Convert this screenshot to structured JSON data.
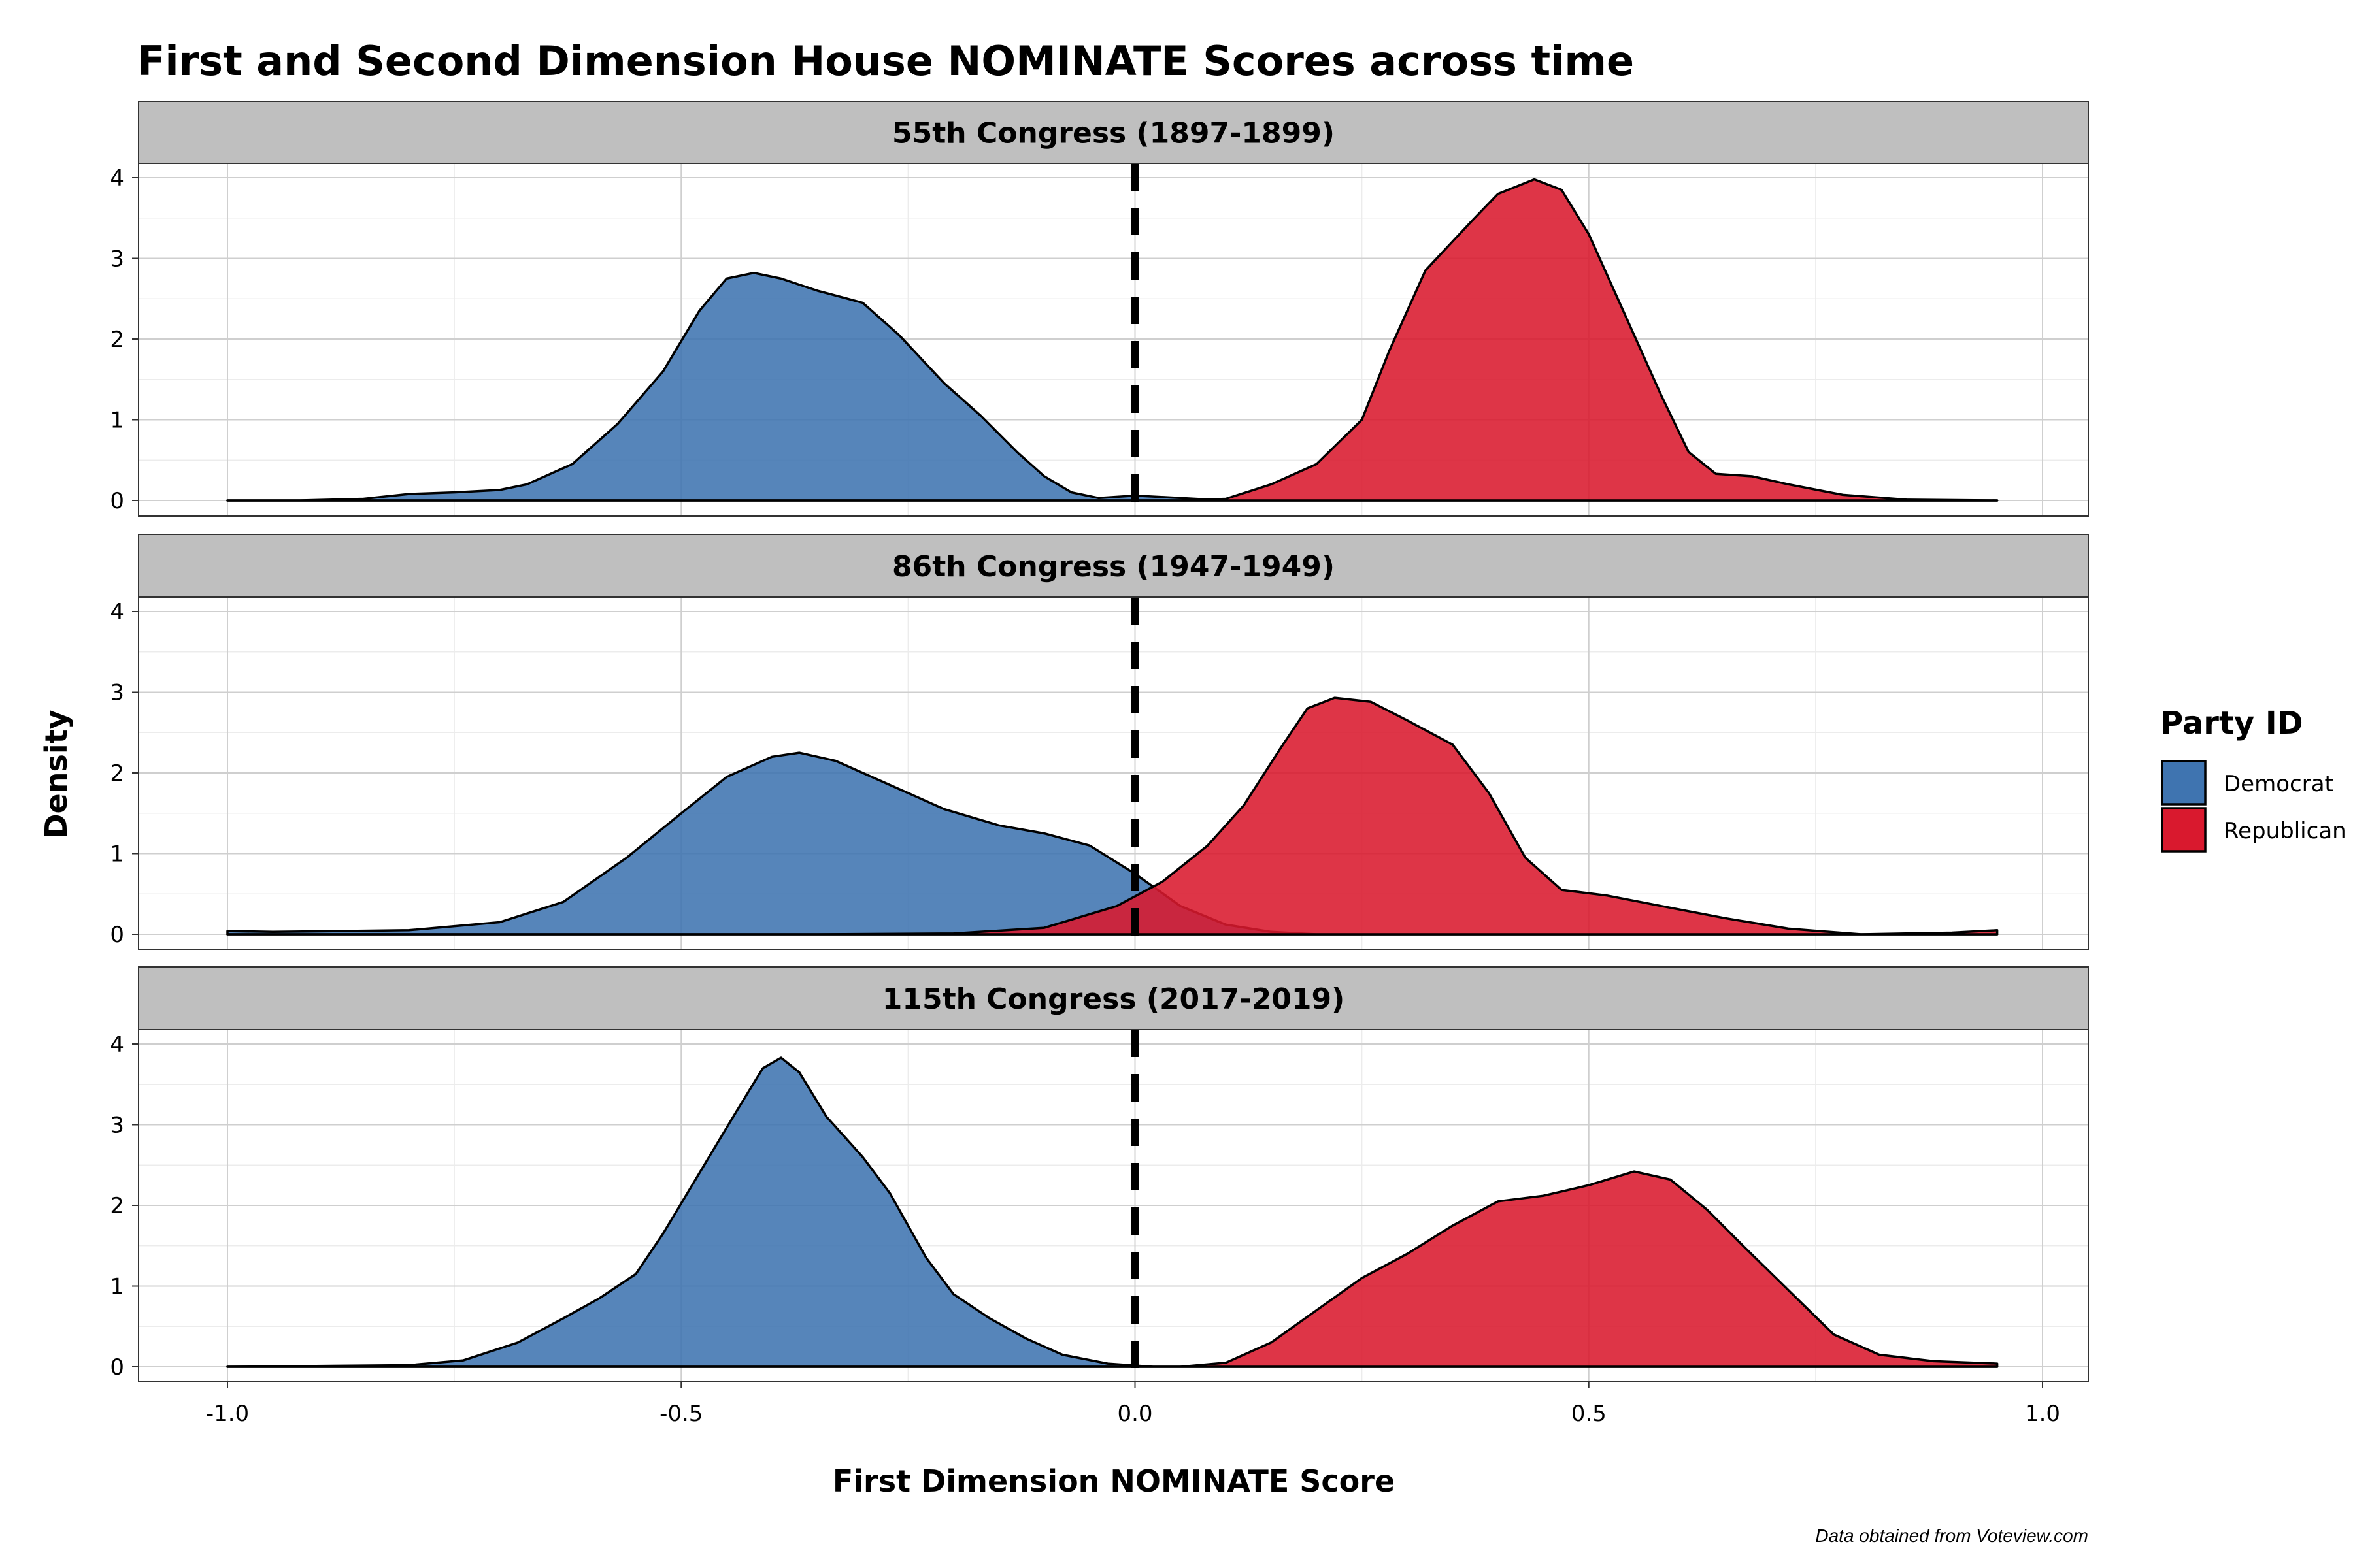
{
  "chart_data": {
    "type": "area",
    "title": "First and Second Dimension House NOMINATE Scores across time",
    "xlabel": "First Dimension NOMINATE Score",
    "ylabel": "Density",
    "caption": "Data obtained from Voteview.com",
    "xlim": [
      -1.0,
      1.0
    ],
    "ylim": [
      0,
      4
    ],
    "x_ticks": [
      "-1.0",
      "-0.5",
      "0.0",
      "0.5",
      "1.0"
    ],
    "y_ticks": [
      "0",
      "1",
      "2",
      "3",
      "4"
    ],
    "grid": true,
    "reference_line": {
      "x": 0.0,
      "style": "dashed"
    },
    "legend": {
      "title": "Party ID",
      "position": "right",
      "items": [
        {
          "name": "Democrat",
          "color": "#3f74b0"
        },
        {
          "name": "Republican",
          "color": "#d9192e"
        }
      ]
    },
    "panels": [
      {
        "label": "55th Congress (1897-1899)",
        "series": [
          {
            "name": "Democrat",
            "color": "#3f74b0",
            "points": [
              [
                -1.0,
                0
              ],
              [
                -0.92,
                0
              ],
              [
                -0.85,
                0.02
              ],
              [
                -0.8,
                0.08
              ],
              [
                -0.75,
                0.1
              ],
              [
                -0.7,
                0.13
              ],
              [
                -0.67,
                0.2
              ],
              [
                -0.62,
                0.45
              ],
              [
                -0.57,
                0.95
              ],
              [
                -0.52,
                1.6
              ],
              [
                -0.48,
                2.35
              ],
              [
                -0.45,
                2.75
              ],
              [
                -0.42,
                2.82
              ],
              [
                -0.39,
                2.75
              ],
              [
                -0.35,
                2.6
              ],
              [
                -0.3,
                2.45
              ],
              [
                -0.26,
                2.05
              ],
              [
                -0.21,
                1.45
              ],
              [
                -0.17,
                1.05
              ],
              [
                -0.13,
                0.6
              ],
              [
                -0.1,
                0.3
              ],
              [
                -0.07,
                0.1
              ],
              [
                -0.04,
                0.03
              ],
              [
                0.0,
                0.06
              ],
              [
                0.05,
                0.03
              ],
              [
                0.1,
                0
              ],
              [
                0.95,
                0
              ]
            ]
          },
          {
            "name": "Republican",
            "color": "#d9192e",
            "points": [
              [
                -1.0,
                0
              ],
              [
                0.05,
                0
              ],
              [
                0.1,
                0.02
              ],
              [
                0.15,
                0.2
              ],
              [
                0.2,
                0.45
              ],
              [
                0.25,
                1.0
              ],
              [
                0.28,
                1.85
              ],
              [
                0.32,
                2.85
              ],
              [
                0.37,
                3.45
              ],
              [
                0.4,
                3.8
              ],
              [
                0.44,
                3.98
              ],
              [
                0.47,
                3.85
              ],
              [
                0.5,
                3.3
              ],
              [
                0.54,
                2.3
              ],
              [
                0.58,
                1.3
              ],
              [
                0.61,
                0.6
              ],
              [
                0.64,
                0.33
              ],
              [
                0.68,
                0.3
              ],
              [
                0.72,
                0.2
              ],
              [
                0.78,
                0.07
              ],
              [
                0.85,
                0.01
              ],
              [
                0.95,
                0
              ]
            ]
          }
        ]
      },
      {
        "label": "86th Congress (1947-1949)",
        "series": [
          {
            "name": "Democrat",
            "color": "#3f74b0",
            "points": [
              [
                -1.0,
                0.04
              ],
              [
                -0.95,
                0.03
              ],
              [
                -0.8,
                0.05
              ],
              [
                -0.7,
                0.15
              ],
              [
                -0.63,
                0.4
              ],
              [
                -0.56,
                0.95
              ],
              [
                -0.5,
                1.5
              ],
              [
                -0.45,
                1.95
              ],
              [
                -0.4,
                2.2
              ],
              [
                -0.37,
                2.25
              ],
              [
                -0.33,
                2.15
              ],
              [
                -0.27,
                1.85
              ],
              [
                -0.21,
                1.55
              ],
              [
                -0.15,
                1.35
              ],
              [
                -0.1,
                1.25
              ],
              [
                -0.05,
                1.1
              ],
              [
                0.0,
                0.75
              ],
              [
                0.05,
                0.35
              ],
              [
                0.1,
                0.12
              ],
              [
                0.15,
                0.03
              ],
              [
                0.2,
                0
              ],
              [
                0.95,
                0
              ]
            ]
          },
          {
            "name": "Republican",
            "color": "#d9192e",
            "points": [
              [
                -1.0,
                0
              ],
              [
                -0.35,
                0
              ],
              [
                -0.2,
                0.01
              ],
              [
                -0.1,
                0.08
              ],
              [
                -0.02,
                0.35
              ],
              [
                0.03,
                0.65
              ],
              [
                0.08,
                1.1
              ],
              [
                0.12,
                1.6
              ],
              [
                0.16,
                2.3
              ],
              [
                0.19,
                2.8
              ],
              [
                0.22,
                2.93
              ],
              [
                0.26,
                2.88
              ],
              [
                0.3,
                2.65
              ],
              [
                0.35,
                2.35
              ],
              [
                0.39,
                1.75
              ],
              [
                0.43,
                0.95
              ],
              [
                0.47,
                0.55
              ],
              [
                0.52,
                0.48
              ],
              [
                0.58,
                0.35
              ],
              [
                0.65,
                0.2
              ],
              [
                0.72,
                0.07
              ],
              [
                0.8,
                0
              ],
              [
                0.9,
                0.02
              ],
              [
                0.95,
                0.05
              ]
            ]
          }
        ]
      },
      {
        "label": "115th Congress (2017-2019)",
        "series": [
          {
            "name": "Democrat",
            "color": "#3f74b0",
            "points": [
              [
                -1.0,
                0
              ],
              [
                -0.8,
                0.02
              ],
              [
                -0.74,
                0.08
              ],
              [
                -0.68,
                0.3
              ],
              [
                -0.63,
                0.6
              ],
              [
                -0.59,
                0.85
              ],
              [
                -0.55,
                1.15
              ],
              [
                -0.52,
                1.65
              ],
              [
                -0.48,
                2.4
              ],
              [
                -0.44,
                3.15
              ],
              [
                -0.41,
                3.7
              ],
              [
                -0.39,
                3.83
              ],
              [
                -0.37,
                3.65
              ],
              [
                -0.34,
                3.1
              ],
              [
                -0.3,
                2.6
              ],
              [
                -0.27,
                2.15
              ],
              [
                -0.23,
                1.35
              ],
              [
                -0.2,
                0.9
              ],
              [
                -0.16,
                0.6
              ],
              [
                -0.12,
                0.35
              ],
              [
                -0.08,
                0.15
              ],
              [
                -0.03,
                0.04
              ],
              [
                0.02,
                0
              ],
              [
                0.95,
                0
              ]
            ]
          },
          {
            "name": "Republican",
            "color": "#d9192e",
            "points": [
              [
                -1.0,
                0
              ],
              [
                0.05,
                0
              ],
              [
                0.1,
                0.05
              ],
              [
                0.15,
                0.3
              ],
              [
                0.2,
                0.7
              ],
              [
                0.25,
                1.1
              ],
              [
                0.3,
                1.4
              ],
              [
                0.35,
                1.75
              ],
              [
                0.4,
                2.05
              ],
              [
                0.45,
                2.12
              ],
              [
                0.5,
                2.25
              ],
              [
                0.55,
                2.42
              ],
              [
                0.59,
                2.32
              ],
              [
                0.63,
                1.95
              ],
              [
                0.67,
                1.5
              ],
              [
                0.72,
                0.95
              ],
              [
                0.77,
                0.4
              ],
              [
                0.82,
                0.15
              ],
              [
                0.88,
                0.07
              ],
              [
                0.95,
                0.04
              ]
            ]
          }
        ]
      }
    ]
  }
}
